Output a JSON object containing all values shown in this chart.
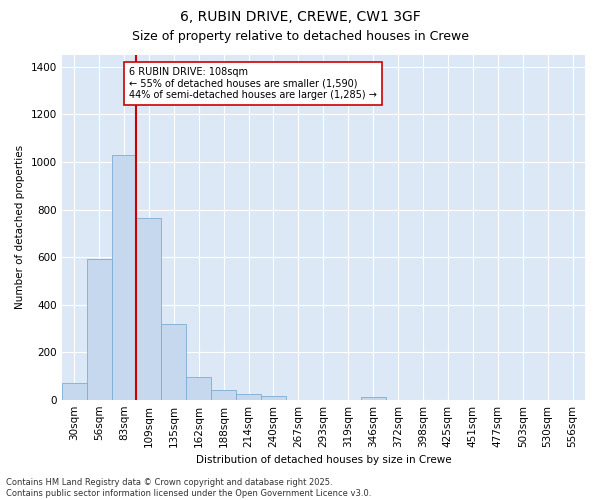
{
  "title1": "6, RUBIN DRIVE, CREWE, CW1 3GF",
  "title2": "Size of property relative to detached houses in Crewe",
  "xlabel": "Distribution of detached houses by size in Crewe",
  "ylabel": "Number of detached properties",
  "categories": [
    "30sqm",
    "56sqm",
    "83sqm",
    "109sqm",
    "135sqm",
    "162sqm",
    "188sqm",
    "214sqm",
    "240sqm",
    "267sqm",
    "293sqm",
    "319sqm",
    "346sqm",
    "372sqm",
    "398sqm",
    "425sqm",
    "451sqm",
    "477sqm",
    "503sqm",
    "530sqm",
    "556sqm"
  ],
  "values": [
    70,
    590,
    1030,
    765,
    320,
    95,
    40,
    22,
    17,
    0,
    0,
    0,
    12,
    0,
    0,
    0,
    0,
    0,
    0,
    0,
    0
  ],
  "bar_color": "#c5d8ee",
  "bar_edge_color": "#7aadd4",
  "vline_x_index": 3,
  "vline_color": "#cc0000",
  "annotation_text": "6 RUBIN DRIVE: 108sqm\n← 55% of detached houses are smaller (1,590)\n44% of semi-detached houses are larger (1,285) →",
  "annotation_box_facecolor": "#ffffff",
  "annotation_box_edgecolor": "#cc0000",
  "ylim": [
    0,
    1450
  ],
  "yticks": [
    0,
    200,
    400,
    600,
    800,
    1000,
    1200,
    1400
  ],
  "footnote": "Contains HM Land Registry data © Crown copyright and database right 2025.\nContains public sector information licensed under the Open Government Licence v3.0.",
  "fig_bg_color": "#ffffff",
  "plot_bg_color": "#dce8f5",
  "title_fontsize": 10,
  "subtitle_fontsize": 9,
  "axis_fontsize": 7.5,
  "tick_fontsize": 7.5,
  "annotation_fontsize": 7,
  "footnote_fontsize": 6
}
